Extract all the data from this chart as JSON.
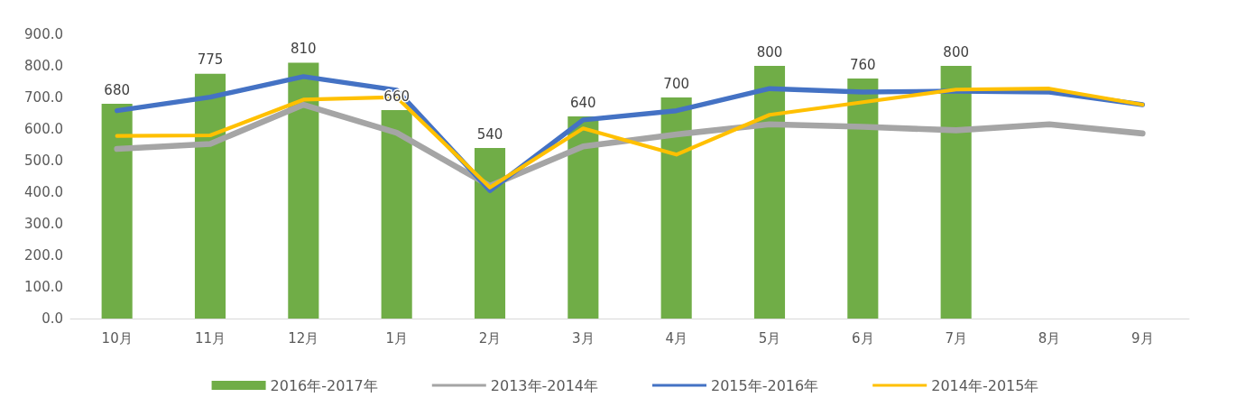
{
  "chart_data": {
    "type": "bar",
    "categories": [
      "10月",
      "11月",
      "12月",
      "1月",
      "2月",
      "3月",
      "4月",
      "5月",
      "6月",
      "7月",
      "8月",
      "9月"
    ],
    "series": [
      {
        "name": "2016年-2017年",
        "type": "bar",
        "color": "#70ad47",
        "values": [
          680,
          775,
          810,
          660,
          540,
          640,
          700,
          800,
          760,
          800,
          null,
          null
        ],
        "data_labels": true
      },
      {
        "name": "2013年-2014年",
        "type": "line",
        "color": "#a5a5a5",
        "values": [
          537,
          553,
          677,
          588,
          420,
          545,
          583,
          615,
          607,
          596,
          615,
          586
        ]
      },
      {
        "name": "2015年-2016年",
        "type": "line",
        "color": "#4472c4",
        "values": [
          658,
          701,
          766,
          723,
          405,
          629,
          658,
          728,
          717,
          720,
          717,
          677
        ]
      },
      {
        "name": "2014年-2015年",
        "type": "line",
        "color": "#ffc000",
        "values": [
          578,
          580,
          693,
          701,
          415,
          602,
          519,
          645,
          685,
          725,
          728,
          677
        ]
      }
    ],
    "ylim": [
      0,
      900
    ],
    "yticks": [
      {
        "value": 0,
        "label": "0.0"
      },
      {
        "value": 100,
        "label": "100.0"
      },
      {
        "value": 200,
        "label": "200.0"
      },
      {
        "value": 300,
        "label": "300.0"
      },
      {
        "value": 400,
        "label": "400.0"
      },
      {
        "value": 500,
        "label": "500.0"
      },
      {
        "value": 600,
        "label": "600.0"
      },
      {
        "value": 700,
        "label": "700.0"
      },
      {
        "value": 800,
        "label": "800.0"
      },
      {
        "value": 900,
        "label": "900.0"
      }
    ],
    "grid": false,
    "legend": "bottom",
    "marker": "none",
    "line_style": "solid"
  }
}
